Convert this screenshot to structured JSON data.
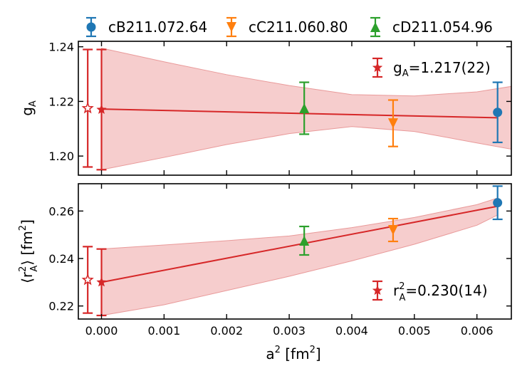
{
  "colors": {
    "cB": "#1f77b4",
    "cC": "#ff7f0e",
    "cD": "#2ca02c",
    "fit": "#d62728",
    "band": "#f4c4c4"
  },
  "legend": [
    {
      "label": "cB211.072.64",
      "marker": "circle",
      "color": "#1f77b4"
    },
    {
      "label": "cC211.060.80",
      "marker": "triangle-down",
      "color": "#ff7f0e"
    },
    {
      "label": "cD211.054.96",
      "marker": "triangle-up",
      "color": "#2ca02c"
    }
  ],
  "chart_data": [
    {
      "type": "scatter",
      "ylabel_main": "g",
      "ylabel_sub": "A",
      "ylim": [
        1.193,
        1.242
      ],
      "yticks": [
        1.2,
        1.22,
        1.24
      ],
      "ytick_labels": [
        "1.20",
        "1.22",
        "1.24"
      ],
      "xlim": [
        -0.00037,
        0.00655
      ],
      "annotation": {
        "main": "g",
        "sub": "A",
        "tail": "=1.217(22)"
      },
      "fit": {
        "x": [
          0.0,
          0.00633
        ],
        "y": [
          1.2172,
          1.214
        ],
        "band_x": [
          0.0,
          0.001,
          0.002,
          0.003,
          0.004,
          0.005,
          0.006,
          0.00655
        ],
        "band_upper": [
          1.2395,
          1.2345,
          1.2298,
          1.2258,
          1.2225,
          1.222,
          1.2235,
          1.2255
        ],
        "band_lower": [
          1.195,
          1.1995,
          1.2042,
          1.2082,
          1.2108,
          1.209,
          1.2048,
          1.2025
        ]
      },
      "points": [
        {
          "series": "cB211.072.64",
          "marker": "circle",
          "color": "#1f77b4",
          "x": 0.00633,
          "y": 1.216,
          "yerr": 0.011
        },
        {
          "series": "cC211.060.80",
          "marker": "triangle-down",
          "color": "#ff7f0e",
          "x": 0.00466,
          "y": 1.212,
          "yerr": 0.0085
        },
        {
          "series": "cD211.054.96",
          "marker": "triangle-up",
          "color": "#2ca02c",
          "x": 0.00324,
          "y": 1.2175,
          "yerr": 0.0095
        },
        {
          "series": "extrapolation",
          "marker": "star",
          "color": "#d62728",
          "x": 0.0,
          "y": 1.217,
          "yerr": 0.022
        },
        {
          "series": "extrapolation-open",
          "marker": "star-open",
          "color": "#d62728",
          "x": -0.00022,
          "y": 1.2175,
          "yerr": 0.0215
        }
      ]
    },
    {
      "type": "scatter",
      "ylabel_main": "r",
      "ylim": [
        0.2145,
        0.2715
      ],
      "yticks": [
        0.22,
        0.24,
        0.26
      ],
      "ytick_labels": [
        "0.22",
        "0.24",
        "0.26"
      ],
      "xlim": [
        -0.00037,
        0.00655
      ],
      "annotation": {
        "main": "r",
        "sup": "2",
        "sub": "A",
        "tail": "=0.230(14)"
      },
      "fit": {
        "x": [
          0.0,
          0.00633
        ],
        "y": [
          0.23,
          0.262
        ],
        "band_x": [
          0.0,
          0.001,
          0.002,
          0.003,
          0.004,
          0.005,
          0.006,
          0.00633
        ],
        "band_upper": [
          0.244,
          0.2457,
          0.2475,
          0.2495,
          0.253,
          0.2573,
          0.2627,
          0.2655
        ],
        "band_lower": [
          0.216,
          0.2205,
          0.2265,
          0.2325,
          0.239,
          0.246,
          0.254,
          0.2583
        ]
      },
      "points": [
        {
          "series": "cB211.072.64",
          "marker": "circle",
          "color": "#1f77b4",
          "x": 0.00633,
          "y": 0.2635,
          "yerr": 0.007
        },
        {
          "series": "cC211.060.80",
          "marker": "triangle-down",
          "color": "#ff7f0e",
          "x": 0.00466,
          "y": 0.252,
          "yerr": 0.0048
        },
        {
          "series": "cD211.054.96",
          "marker": "triangle-up",
          "color": "#2ca02c",
          "x": 0.00324,
          "y": 0.2475,
          "yerr": 0.006
        },
        {
          "series": "extrapolation",
          "marker": "star",
          "color": "#d62728",
          "x": 0.0,
          "y": 0.23,
          "yerr": 0.014
        },
        {
          "series": "extrapolation-open",
          "marker": "star-open",
          "color": "#d62728",
          "x": -0.00022,
          "y": 0.231,
          "yerr": 0.014
        }
      ]
    }
  ],
  "x_axis": {
    "label_main": "a",
    "label_sup": "2",
    "label_tail": " [fm",
    "label_sup2": "2",
    "label_end": "]",
    "ticks": [
      0.0,
      0.001,
      0.002,
      0.003,
      0.004,
      0.005,
      0.006
    ],
    "tick_labels": [
      "0.000",
      "0.001",
      "0.002",
      "0.003",
      "0.004",
      "0.005",
      "0.006"
    ]
  },
  "ylabel_bottom": {
    "open": "⟨r",
    "sup": "2",
    "sub": "A",
    "close": "⟩ [fm",
    "sup2": "2",
    "end": "]"
  }
}
